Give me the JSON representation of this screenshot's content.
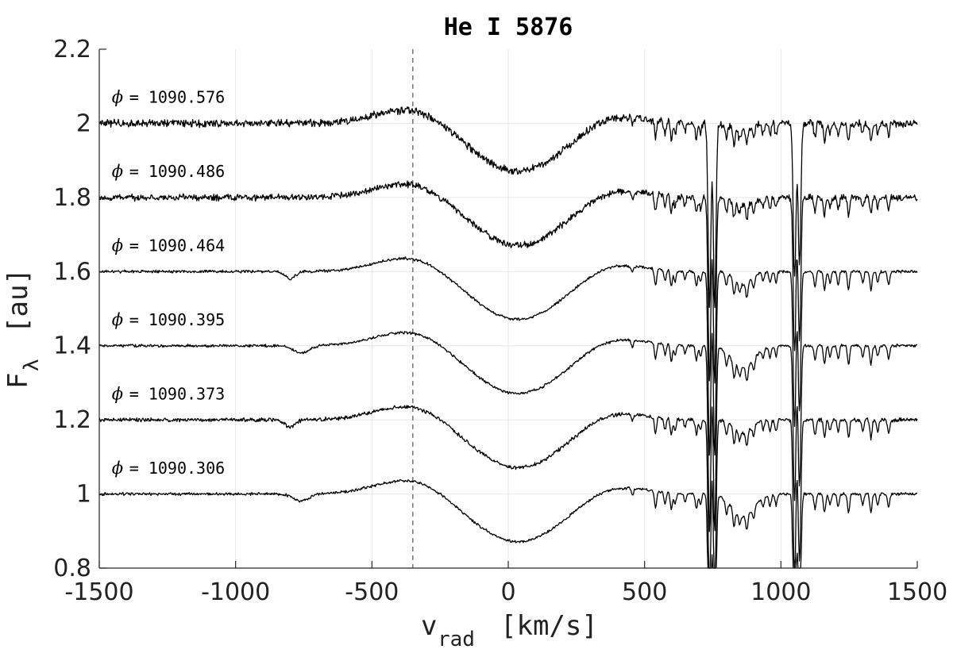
{
  "chart_data": {
    "type": "line",
    "title": "He I 5876",
    "xlabel_main": "v",
    "xlabel_sub": "rad",
    "xlabel_unit": "[km/s]",
    "ylabel_main": "F",
    "ylabel_sub": "λ",
    "ylabel_unit": "[au]",
    "xlim": [
      -1500,
      1500
    ],
    "ylim": [
      0.8,
      2.2
    ],
    "xticks": [
      -1500,
      -1000,
      -500,
      0,
      500,
      1000,
      1500
    ],
    "xtick_labels": [
      "-1500",
      "-1000",
      "-500",
      "0",
      "500",
      "1000",
      "1500"
    ],
    "yticks": [
      0.8,
      1.0,
      1.2,
      1.4,
      1.6,
      1.8,
      2.0,
      2.2
    ],
    "ytick_labels": [
      "0.8",
      "1",
      "1.2",
      "1.4",
      "1.6",
      "1.8",
      "2",
      "2.2"
    ],
    "grid": true,
    "reference_line_x": -350,
    "phase_symbol": "ϕ",
    "series": [
      {
        "label": "= 1090.576",
        "offset": 2.0,
        "label_x": -1390,
        "label_y": 2.07,
        "noise": 0.008,
        "variant": 3
      },
      {
        "label": "= 1090.486",
        "offset": 1.8,
        "label_x": -1390,
        "label_y": 1.87,
        "noise": 0.007,
        "variant": 3
      },
      {
        "label": "= 1090.464",
        "offset": 1.6,
        "label_x": -1390,
        "label_y": 1.67,
        "noise": 0.003,
        "variant": 2
      },
      {
        "label": "= 1090.395",
        "offset": 1.4,
        "label_x": -1390,
        "label_y": 1.47,
        "noise": 0.003,
        "variant": 1
      },
      {
        "label": "= 1090.373",
        "offset": 1.2,
        "label_x": -1390,
        "label_y": 1.27,
        "noise": 0.004,
        "variant": 2
      },
      {
        "label": "= 1090.306",
        "offset": 1.0,
        "label_x": -1390,
        "label_y": 1.07,
        "noise": 0.003,
        "variant": 1
      }
    ]
  }
}
